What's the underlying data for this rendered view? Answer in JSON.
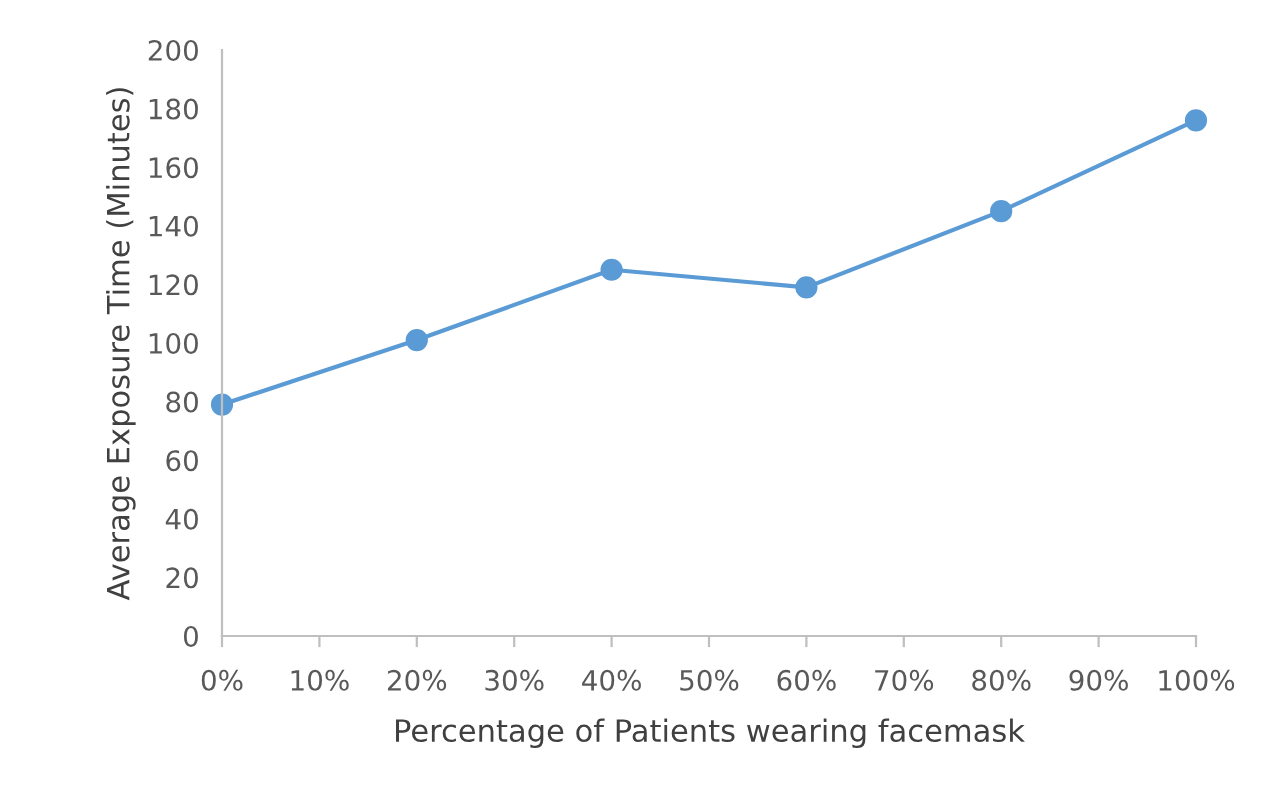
{
  "chart_data": {
    "type": "line",
    "xlabel": "Percentage of Patients wearing facemask",
    "ylabel": "Average Exposure Time (Minutes)",
    "x": [
      0,
      20,
      40,
      60,
      80,
      100
    ],
    "series": [
      {
        "color": "#5b9bd5",
        "values": [
          79,
          101,
          125,
          119,
          145,
          176
        ]
      }
    ],
    "xlim": [
      0,
      100
    ],
    "xticks": [
      {
        "value": 0,
        "label": "0%"
      },
      {
        "value": 10,
        "label": "10%"
      },
      {
        "value": 20,
        "label": "20%"
      },
      {
        "value": 30,
        "label": "30%"
      },
      {
        "value": 40,
        "label": "40%"
      },
      {
        "value": 50,
        "label": "50%"
      },
      {
        "value": 60,
        "label": "60%"
      },
      {
        "value": 70,
        "label": "70%"
      },
      {
        "value": 80,
        "label": "80%"
      },
      {
        "value": 90,
        "label": "90%"
      },
      {
        "value": 100,
        "label": "100%"
      }
    ],
    "ylim": [
      0,
      200
    ],
    "yticks": [
      0,
      20,
      40,
      60,
      80,
      100,
      120,
      140,
      160,
      180,
      200
    ],
    "marker": "circle",
    "line_style": "solid",
    "grid": false
  }
}
